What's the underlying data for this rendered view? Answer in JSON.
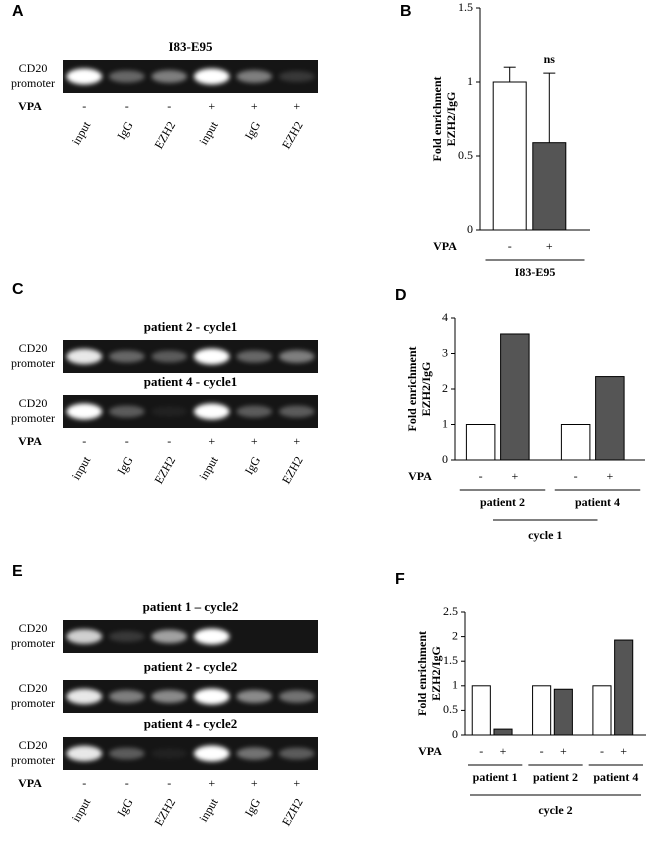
{
  "panel_labels": [
    "A",
    "B",
    "C",
    "D",
    "E",
    "F"
  ],
  "gel_panels": [
    {
      "lanes": [
        "input",
        "IgG",
        "EZH2",
        "input",
        "IgG",
        "EZH2"
      ],
      "vpa_label": "VPA",
      "vpa": [
        "-",
        "-",
        "-",
        "+",
        "+",
        "+"
      ],
      "gels": [
        {
          "title": "I83-E95",
          "row_label": [
            "CD20",
            "promoter"
          ]
        }
      ]
    },
    {
      "lanes": [
        "input",
        "IgG",
        "EZH2",
        "input",
        "IgG",
        "EZH2"
      ],
      "vpa_label": "VPA",
      "vpa": [
        "-",
        "-",
        "-",
        "+",
        "+",
        "+"
      ],
      "gels": [
        {
          "title": "patient 2 - cycle1",
          "row_label": [
            "CD20",
            "promoter"
          ]
        },
        {
          "title": "patient 4 - cycle1",
          "row_label": [
            "CD20",
            "promoter"
          ]
        }
      ]
    },
    {
      "lanes": [
        "input",
        "IgG",
        "EZH2",
        "input",
        "IgG",
        "EZH2"
      ],
      "vpa_label": "VPA",
      "vpa": [
        "-",
        "-",
        "-",
        "+",
        "+",
        "+"
      ],
      "gels": [
        {
          "title": "patient 1 – cycle2",
          "row_label": [
            "CD20",
            "promoter"
          ]
        },
        {
          "title": "patient 2 - cycle2",
          "row_label": [
            "CD20",
            "promoter"
          ]
        },
        {
          "title": "patient 4 - cycle2",
          "row_label": [
            "CD20",
            "promoter"
          ]
        }
      ]
    }
  ],
  "chart_data": [
    {
      "type": "bar",
      "y_label": [
        "Fold enrichment",
        "EZH2/IgG"
      ],
      "categories": [
        "I83-E95"
      ],
      "vpa_label": "VPA",
      "series": [
        {
          "name": "-",
          "color": "#ffffff",
          "values": [
            1.0
          ],
          "errors": [
            0.1
          ]
        },
        {
          "name": "+",
          "color": "#555555",
          "values": [
            0.59
          ],
          "errors": [
            0.47
          ]
        }
      ],
      "annotations": [
        "ns"
      ],
      "ylim": [
        0,
        1.5
      ],
      "yticks": [
        0,
        0.5,
        1,
        1.5
      ]
    },
    {
      "type": "bar",
      "y_label": [
        "Fold enrichment",
        "EZH2/IgG"
      ],
      "categories": [
        "patient 2",
        "patient 4"
      ],
      "vpa_label": "VPA",
      "group_label": "cycle 1",
      "series": [
        {
          "name": "-",
          "color": "#ffffff",
          "values": [
            1,
            1
          ]
        },
        {
          "name": "+",
          "color": "#555555",
          "values": [
            3.55,
            2.35
          ]
        }
      ],
      "ylim": [
        0,
        4
      ],
      "yticks": [
        0,
        1,
        2,
        3,
        4
      ]
    },
    {
      "type": "bar",
      "y_label": [
        "Fold enrichment",
        "EZH2/IgG"
      ],
      "categories": [
        "patient 1",
        "patient 2",
        "patient 4"
      ],
      "vpa_label": "VPA",
      "group_label": "cycle 2",
      "series": [
        {
          "name": "-",
          "color": "#ffffff",
          "values": [
            1,
            1,
            1
          ]
        },
        {
          "name": "+",
          "color": "#555555",
          "values": [
            0.12,
            0.93,
            1.93
          ]
        }
      ],
      "ylim": [
        0,
        2.5
      ],
      "yticks": [
        0,
        0.5,
        1,
        1.5,
        2,
        2.5
      ]
    }
  ]
}
